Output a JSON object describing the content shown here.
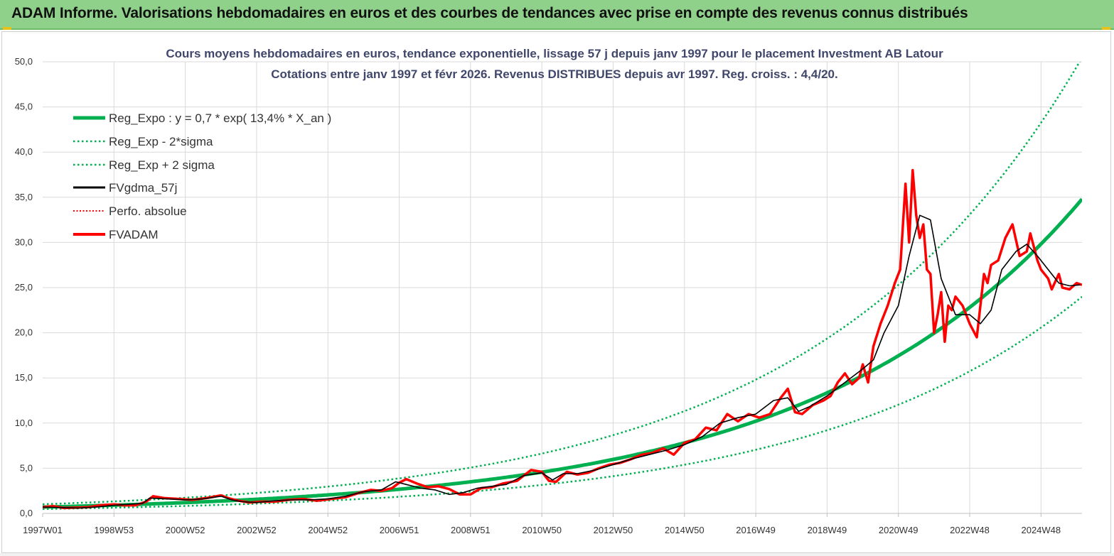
{
  "header": {
    "title": "ADAM Informe. Valorisations hebdomadaires en euros et des courbes de tendances avec prise en compte des revenus connus distribués"
  },
  "colors": {
    "header_bg": "#8fd18a",
    "regression": "#00b050",
    "smoothed": "#000000",
    "price": "#ff0000",
    "perf": "#ff0000",
    "grid": "#d9d9d9",
    "title_text": "#40476b"
  },
  "chart_data": {
    "type": "line",
    "title": "Cours moyens hebdomadaires en euros, tendance exponentielle, lissage 57 j depuis janv 1997 pour le placement Investment AB Latour",
    "subtitle": "Cotations entre janv 1997 et févr 2026. Revenus DISTRIBUES depuis avr 1997. Reg. croiss. : 4,4/20.",
    "xlabel": "",
    "ylabel": "",
    "ylim": [
      0,
      50
    ],
    "xlim": [
      1997.0,
      2026.15
    ],
    "y_ticks": [
      "0,0",
      "5,0",
      "10,0",
      "15,0",
      "20,0",
      "25,0",
      "30,0",
      "35,0",
      "40,0",
      "45,0",
      "50,0"
    ],
    "y_tick_values": [
      0,
      5,
      10,
      15,
      20,
      25,
      30,
      35,
      40,
      45,
      50
    ],
    "x_tick_labels": [
      "1997W01",
      "1998W53",
      "2000W52",
      "2002W52",
      "2004W52",
      "2006W51",
      "2008W51",
      "2010W50",
      "2012W50",
      "2014W50",
      "2016W49",
      "2018W49",
      "2020W49",
      "2022W48",
      "2024W48"
    ],
    "x_tick_values": [
      1997.0,
      1999.0,
      2001.0,
      2003.0,
      2005.0,
      2007.0,
      2009.0,
      2011.0,
      2013.0,
      2015.0,
      2017.0,
      2019.0,
      2021.0,
      2023.0,
      2025.0
    ],
    "grid": true,
    "legend_position": "top-left",
    "regression": {
      "a": 0.7,
      "rate": 0.134,
      "sigma_band_factor": 1.45
    },
    "series": [
      {
        "name": "Reg_Expo : y = 0,7 * exp( 13,4% *  X_an )",
        "style": "solid-thick",
        "color": "#00b050",
        "values": "computed from regression a * exp(rate * years since 1997)"
      },
      {
        "name": "Reg_Exp - 2*sigma",
        "style": "dotted",
        "color": "#00b050",
        "values": "regression / 1.45"
      },
      {
        "name": "Reg_Exp + 2 sigma",
        "style": "dotted",
        "color": "#00b050",
        "values": "regression * 1.45"
      },
      {
        "name": "FVgdma_57j",
        "style": "solid-thin",
        "color": "#000000",
        "x": [
          1997.0,
          1997.5,
          1998.0,
          1998.5,
          1999.0,
          1999.4,
          1999.8,
          2000.0,
          2000.5,
          2001.0,
          2001.5,
          2002.0,
          2002.3,
          2002.6,
          2003.0,
          2003.5,
          2004.0,
          2004.5,
          2005.0,
          2005.5,
          2006.0,
          2006.5,
          2006.9,
          2007.2,
          2007.6,
          2008.0,
          2008.4,
          2008.8,
          2009.2,
          2009.6,
          2010.0,
          2010.5,
          2011.0,
          2011.3,
          2011.6,
          2012.0,
          2012.5,
          2013.0,
          2013.5,
          2014.0,
          2014.5,
          2015.0,
          2015.5,
          2016.0,
          2016.5,
          2017.0,
          2017.5,
          2017.9,
          2018.2,
          2018.5,
          2019.0,
          2019.5,
          2020.0,
          2020.3,
          2020.6,
          2021.0,
          2021.3,
          2021.6,
          2021.9,
          2022.2,
          2022.6,
          2023.0,
          2023.3,
          2023.6,
          2023.9,
          2024.3,
          2024.6,
          2024.9,
          2025.2,
          2025.5,
          2025.8,
          2026.1
        ],
        "values": [
          0.7,
          0.65,
          0.6,
          0.7,
          0.9,
          1.0,
          1.1,
          1.7,
          1.6,
          1.5,
          1.6,
          1.9,
          1.5,
          1.3,
          1.2,
          1.4,
          1.5,
          1.5,
          1.6,
          1.9,
          2.4,
          2.6,
          3.5,
          3.2,
          2.8,
          2.6,
          2.1,
          2.3,
          2.8,
          3.0,
          3.2,
          4.2,
          4.5,
          3.7,
          4.4,
          4.4,
          4.8,
          5.4,
          6.0,
          6.5,
          7.0,
          7.6,
          8.5,
          10.0,
          10.6,
          11.0,
          12.5,
          12.8,
          11.3,
          11.8,
          13.0,
          14.5,
          16.0,
          17.0,
          20.0,
          23.0,
          28.5,
          33.0,
          32.5,
          26.0,
          22.0,
          22.0,
          21.0,
          22.5,
          27.0,
          29.0,
          29.8,
          28.5,
          27.0,
          25.5,
          25.2,
          25.3
        ]
      },
      {
        "name": "Perfo. absolue",
        "style": "dotted",
        "color": "#ff0000",
        "values": "not visibly distinct from FVADAM"
      },
      {
        "name": "FVADAM",
        "style": "solid-thick",
        "color": "#ff0000",
        "x": [
          1997.0,
          1997.3,
          1997.6,
          1998.0,
          1998.3,
          1998.6,
          1999.0,
          1999.3,
          1999.6,
          1999.9,
          2000.1,
          2000.4,
          2000.8,
          2001.2,
          2001.6,
          2002.0,
          2002.2,
          2002.5,
          2002.8,
          2003.1,
          2003.5,
          2003.9,
          2004.3,
          2004.7,
          2005.1,
          2005.5,
          2005.9,
          2006.2,
          2006.5,
          2006.8,
          2007.0,
          2007.2,
          2007.5,
          2007.8,
          2008.1,
          2008.4,
          2008.7,
          2009.0,
          2009.3,
          2009.6,
          2009.9,
          2010.3,
          2010.7,
          2011.0,
          2011.2,
          2011.4,
          2011.7,
          2012.0,
          2012.3,
          2012.6,
          2012.9,
          2013.2,
          2013.5,
          2013.8,
          2014.1,
          2014.4,
          2014.7,
          2015.0,
          2015.3,
          2015.6,
          2015.9,
          2016.2,
          2016.5,
          2016.8,
          2017.1,
          2017.4,
          2017.7,
          2017.9,
          2018.1,
          2018.3,
          2018.6,
          2018.9,
          2019.1,
          2019.3,
          2019.5,
          2019.7,
          2019.9,
          2020.0,
          2020.15,
          2020.3,
          2020.5,
          2020.7,
          2020.9,
          2021.05,
          2021.2,
          2021.3,
          2021.4,
          2021.5,
          2021.6,
          2021.7,
          2021.8,
          2021.9,
          2022.0,
          2022.1,
          2022.2,
          2022.3,
          2022.4,
          2022.5,
          2022.6,
          2022.8,
          2023.0,
          2023.2,
          2023.4,
          2023.5,
          2023.6,
          2023.8,
          2024.0,
          2024.2,
          2024.4,
          2024.6,
          2024.7,
          2024.9,
          2025.0,
          2025.2,
          2025.3,
          2025.5,
          2025.6,
          2025.8,
          2026.0,
          2026.15
        ],
        "values": [
          0.7,
          0.8,
          0.6,
          0.65,
          0.7,
          0.9,
          1.0,
          0.9,
          0.9,
          1.3,
          1.9,
          1.7,
          1.6,
          1.5,
          1.7,
          2.0,
          1.7,
          1.4,
          1.2,
          1.3,
          1.3,
          1.5,
          1.6,
          1.4,
          1.6,
          1.8,
          2.3,
          2.6,
          2.5,
          2.8,
          3.4,
          3.8,
          3.3,
          2.9,
          3.0,
          2.7,
          2.1,
          2.1,
          2.8,
          2.9,
          3.3,
          3.6,
          4.8,
          4.6,
          3.6,
          3.5,
          4.6,
          4.3,
          4.5,
          5.0,
          5.4,
          5.6,
          6.0,
          6.5,
          6.7,
          7.2,
          6.5,
          7.8,
          8.2,
          9.5,
          9.2,
          11.0,
          10.2,
          11.0,
          10.6,
          11.0,
          12.8,
          13.8,
          11.2,
          11.0,
          12.0,
          12.5,
          13.0,
          14.5,
          15.5,
          14.3,
          15.0,
          16.5,
          14.5,
          18.5,
          21.0,
          23.0,
          25.5,
          27.0,
          36.5,
          30.0,
          38.0,
          33.0,
          30.5,
          32.0,
          27.0,
          26.5,
          20.0,
          22.0,
          24.5,
          19.0,
          23.0,
          22.5,
          24.0,
          23.0,
          21.0,
          19.5,
          26.5,
          25.5,
          27.5,
          28.0,
          30.5,
          32.0,
          28.5,
          29.0,
          31.0,
          28.0,
          27.0,
          26.0,
          24.8,
          26.5,
          25.0,
          24.8,
          25.5,
          25.3
        ]
      }
    ]
  }
}
